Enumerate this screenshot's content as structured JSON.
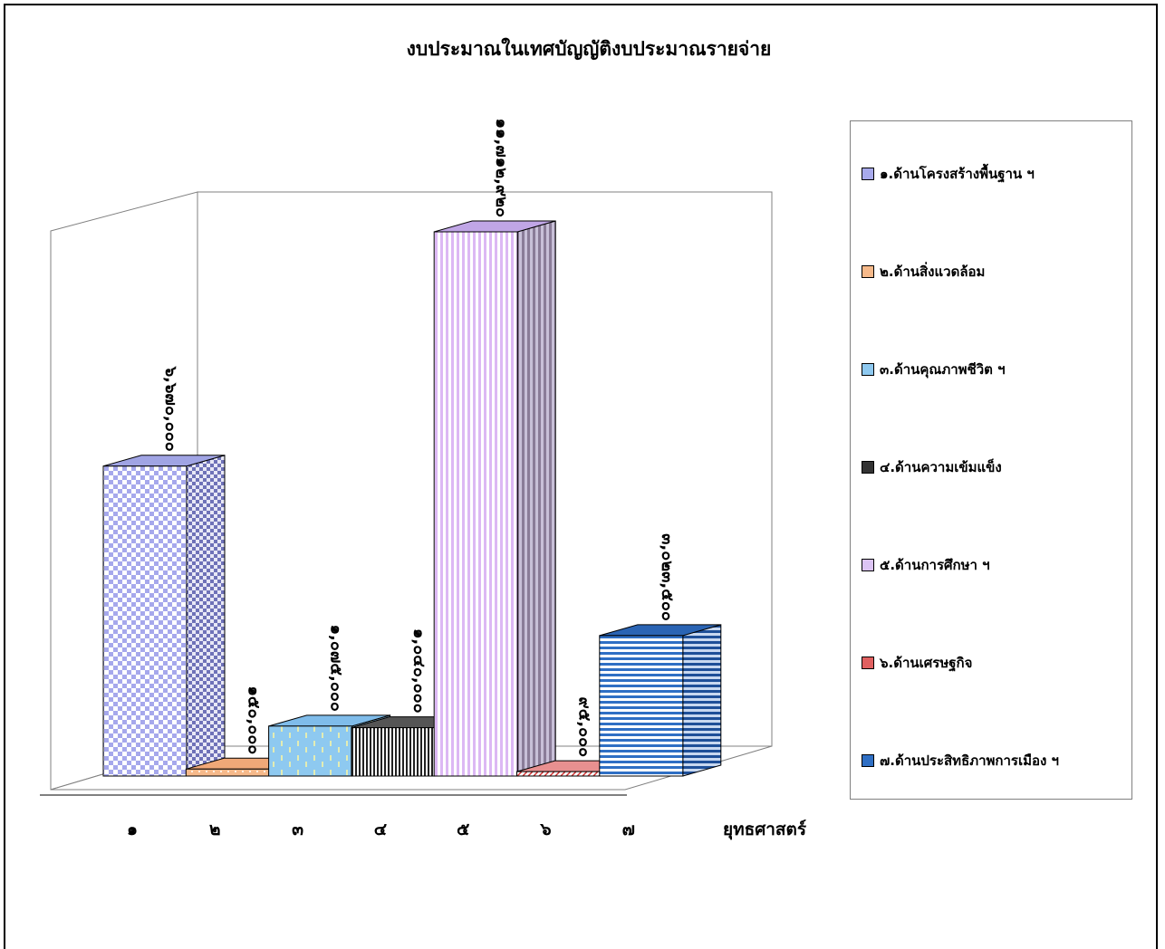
{
  "chart_data": {
    "type": "bar",
    "title": "งบประมาณในเทศบัญญัติงบประมาณรายจ่าย",
    "xlabel": "ยุทธศาสตร์",
    "ylabel": "",
    "categories": [
      "๑",
      "๒",
      "๓",
      "๔",
      "๕",
      "๖",
      "๗"
    ],
    "values": [
      6670000,
      150000,
      1075000,
      1040000,
      11712920,
      95000,
      3023500
    ],
    "value_labels": [
      "๖,๖๗๐,๐๐๐",
      "๑๕๐,๐๐๐",
      "๑,๐๗๕,๐๐๐",
      "๑,๐๔๐,๐๐๐",
      "๑๑,๗๑๒,๙๒๐",
      "๙๕,๐๐๐",
      "๓,๐๒๓,๕๐๐"
    ],
    "legend_position": "right",
    "legend": [
      "๑.ด้านโครงสร้างพื้นฐาน ฯ",
      "๒.ด้านสิ่งแวดล้อม",
      "๓.ด้านคุณภาพชีวิต ฯ",
      "๔.ด้านความเข้มแข็ง",
      "๕.ด้านการศึกษา ฯ",
      "๖.ด้านเศรษฐกิจ",
      "๗.ด้านประสิทธิภาพการเมือง ฯ"
    ],
    "colors": [
      "#b0b4f0",
      "#f6b98a",
      "#8ec9f0",
      "#6a6a6a",
      "#dcc4f4",
      "#f0a8a8",
      "#2f6fc4"
    ],
    "grid": false
  }
}
